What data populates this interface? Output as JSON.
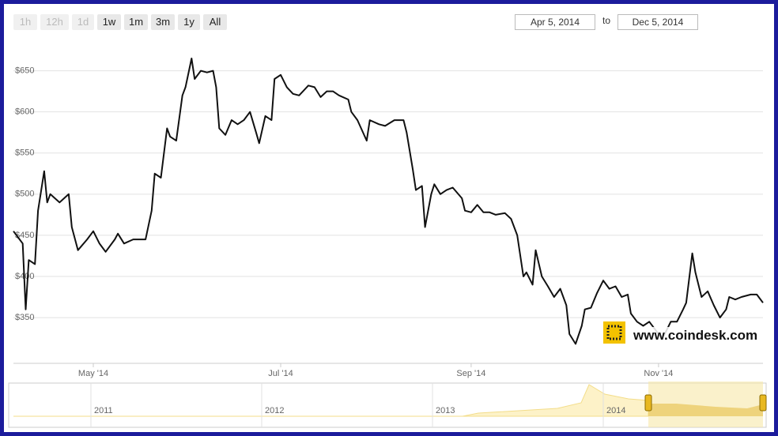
{
  "range_buttons": [
    {
      "label": "1h",
      "enabled": false
    },
    {
      "label": "12h",
      "enabled": false
    },
    {
      "label": "1d",
      "enabled": false
    },
    {
      "label": "1w",
      "enabled": true
    },
    {
      "label": "1m",
      "enabled": true
    },
    {
      "label": "3m",
      "enabled": true
    },
    {
      "label": "1y",
      "enabled": true
    },
    {
      "label": "All",
      "enabled": true
    }
  ],
  "date_from": "Apr 5, 2014",
  "date_sep": "to",
  "date_to": "Dec 5, 2014",
  "watermark": "www.coindesk.com",
  "navigator": {
    "labels": [
      "2011",
      "2012",
      "2013",
      "2014"
    ]
  },
  "chart_data": {
    "type": "line",
    "color": "#111111",
    "grid": true,
    "xlim": [
      "2014-04-05",
      "2014-12-05"
    ],
    "xticks": [
      {
        "value": "2014-05-01",
        "label": "May '14"
      },
      {
        "value": "2014-07-01",
        "label": "Jul '14"
      },
      {
        "value": "2014-09-01",
        "label": "Sep '14"
      },
      {
        "value": "2014-11-01",
        "label": "Nov '14"
      }
    ],
    "ylim": [
      304,
      688
    ],
    "yticks": [
      {
        "value": 350,
        "label": "$350"
      },
      {
        "value": 400,
        "label": "$400"
      },
      {
        "value": 450,
        "label": "$450"
      },
      {
        "value": 500,
        "label": "$500"
      },
      {
        "value": 550,
        "label": "$550"
      },
      {
        "value": 600,
        "label": "$600"
      },
      {
        "value": 650,
        "label": "$650"
      }
    ],
    "x": [
      "2014-04-05",
      "2014-04-07",
      "2014-04-08",
      "2014-04-09",
      "2014-04-10",
      "2014-04-12",
      "2014-04-13",
      "2014-04-15",
      "2014-04-16",
      "2014-04-17",
      "2014-04-20",
      "2014-04-23",
      "2014-04-24",
      "2014-04-26",
      "2014-04-29",
      "2014-05-01",
      "2014-05-03",
      "2014-05-05",
      "2014-05-08",
      "2014-05-09",
      "2014-05-11",
      "2014-05-14",
      "2014-05-18",
      "2014-05-20",
      "2014-05-21",
      "2014-05-23",
      "2014-05-25",
      "2014-05-26",
      "2014-05-28",
      "2014-05-30",
      "2014-05-31",
      "2014-06-02",
      "2014-06-03",
      "2014-06-05",
      "2014-06-07",
      "2014-06-09",
      "2014-06-10",
      "2014-06-11",
      "2014-06-13",
      "2014-06-15",
      "2014-06-17",
      "2014-06-19",
      "2014-06-21",
      "2014-06-23",
      "2014-06-24",
      "2014-06-26",
      "2014-06-28",
      "2014-06-29",
      "2014-07-01",
      "2014-07-03",
      "2014-07-05",
      "2014-07-07",
      "2014-07-10",
      "2014-07-12",
      "2014-07-14",
      "2014-07-16",
      "2014-07-18",
      "2014-07-20",
      "2014-07-23",
      "2014-07-24",
      "2014-07-26",
      "2014-07-29",
      "2014-07-30",
      "2014-08-02",
      "2014-08-04",
      "2014-08-07",
      "2014-08-10",
      "2014-08-11",
      "2014-08-13",
      "2014-08-14",
      "2014-08-16",
      "2014-08-17",
      "2014-08-19",
      "2014-08-20",
      "2014-08-22",
      "2014-08-24",
      "2014-08-26",
      "2014-08-29",
      "2014-08-30",
      "2014-09-01",
      "2014-09-03",
      "2014-09-05",
      "2014-09-07",
      "2014-09-09",
      "2014-09-12",
      "2014-09-14",
      "2014-09-16",
      "2014-09-18",
      "2014-09-19",
      "2014-09-21",
      "2014-09-22",
      "2014-09-24",
      "2014-09-26",
      "2014-09-28",
      "2014-09-30",
      "2014-10-02",
      "2014-10-03",
      "2014-10-05",
      "2014-10-07",
      "2014-10-08",
      "2014-10-10",
      "2014-10-12",
      "2014-10-14",
      "2014-10-16",
      "2014-10-18",
      "2014-10-20",
      "2014-10-22",
      "2014-10-23",
      "2014-10-25",
      "2014-10-27",
      "2014-10-29",
      "2014-10-31",
      "2014-11-02",
      "2014-11-03",
      "2014-11-05",
      "2014-11-07",
      "2014-11-09",
      "2014-11-10",
      "2014-11-12",
      "2014-11-13",
      "2014-11-15",
      "2014-11-17",
      "2014-11-19",
      "2014-11-21",
      "2014-11-23",
      "2014-11-24",
      "2014-11-26",
      "2014-11-28",
      "2014-12-01",
      "2014-12-03",
      "2014-12-05"
    ],
    "values": [
      455,
      445,
      440,
      360,
      420,
      415,
      480,
      528,
      490,
      500,
      490,
      500,
      460,
      432,
      445,
      455,
      440,
      430,
      445,
      452,
      440,
      445,
      445,
      480,
      525,
      520,
      580,
      570,
      565,
      620,
      630,
      665,
      640,
      650,
      648,
      650,
      630,
      580,
      572,
      590,
      585,
      590,
      600,
      575,
      562,
      595,
      590,
      640,
      645,
      630,
      622,
      620,
      632,
      630,
      618,
      625,
      625,
      620,
      615,
      600,
      590,
      565,
      590,
      585,
      583,
      590,
      590,
      575,
      530,
      505,
      510,
      460,
      500,
      512,
      500,
      505,
      508,
      495,
      480,
      478,
      487,
      478,
      478,
      475,
      477,
      470,
      450,
      400,
      405,
      390,
      432,
      400,
      388,
      375,
      385,
      365,
      330,
      318,
      340,
      360,
      362,
      380,
      395,
      385,
      388,
      375,
      378,
      355,
      345,
      340,
      345,
      335,
      325,
      330,
      345,
      345,
      360,
      368,
      428,
      405,
      375,
      382,
      365,
      350,
      360,
      375,
      372,
      375,
      378,
      378,
      368
    ]
  }
}
